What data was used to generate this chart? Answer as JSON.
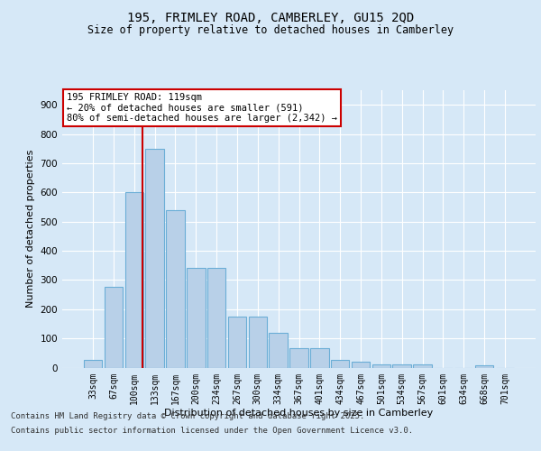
{
  "title_line1": "195, FRIMLEY ROAD, CAMBERLEY, GU15 2QD",
  "title_line2": "Size of property relative to detached houses in Camberley",
  "xlabel": "Distribution of detached houses by size in Camberley",
  "ylabel": "Number of detached properties",
  "categories": [
    "33sqm",
    "67sqm",
    "100sqm",
    "133sqm",
    "167sqm",
    "200sqm",
    "234sqm",
    "267sqm",
    "300sqm",
    "334sqm",
    "367sqm",
    "401sqm",
    "434sqm",
    "467sqm",
    "501sqm",
    "534sqm",
    "567sqm",
    "601sqm",
    "634sqm",
    "668sqm",
    "701sqm"
  ],
  "values": [
    25,
    275,
    600,
    750,
    540,
    340,
    340,
    175,
    175,
    120,
    65,
    65,
    25,
    20,
    10,
    10,
    10,
    0,
    0,
    8,
    0
  ],
  "bar_color": "#b8d0e8",
  "bar_edge_color": "#6baed6",
  "marker_line_color": "#cc0000",
  "annotation_text": "195 FRIMLEY ROAD: 119sqm\n← 20% of detached houses are smaller (591)\n80% of semi-detached houses are larger (2,342) →",
  "annotation_box_color": "#ffffff",
  "annotation_box_edge": "#cc0000",
  "background_color": "#d6e8f7",
  "plot_bg_color": "#d6e8f7",
  "grid_color": "#ffffff",
  "ylim": [
    0,
    950
  ],
  "yticks": [
    0,
    100,
    200,
    300,
    400,
    500,
    600,
    700,
    800,
    900
  ],
  "footer_line1": "Contains HM Land Registry data © Crown copyright and database right 2025.",
  "footer_line2": "Contains public sector information licensed under the Open Government Licence v3.0."
}
